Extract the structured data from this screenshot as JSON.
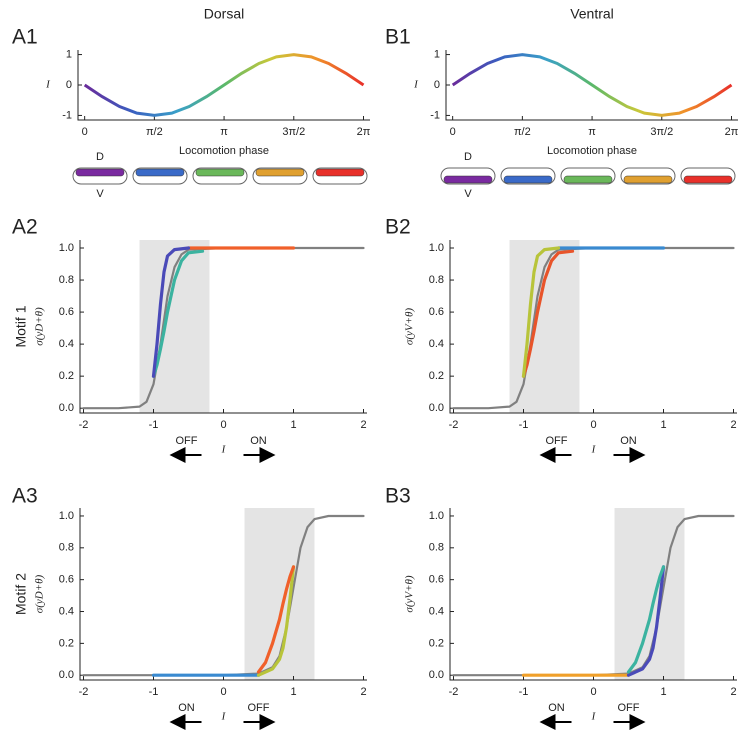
{
  "chart_data": [
    {
      "type": "line",
      "panel_label": "A1",
      "title": "Dorsal",
      "xlabel": "Locomotion phase",
      "ylabel": "I",
      "x": [
        0,
        0.3927,
        0.7854,
        1.1781,
        1.5708,
        1.9635,
        2.3562,
        2.7489,
        3.1416,
        3.5343,
        3.927,
        4.3197,
        4.7124,
        5.1051,
        5.4978,
        5.8905,
        6.2832
      ],
      "values": [
        0,
        -0.3827,
        -0.7071,
        -0.9239,
        -1,
        -0.9239,
        -0.7071,
        -0.3827,
        0,
        0.3827,
        0.7071,
        0.9239,
        1,
        0.9239,
        0.7071,
        0.3827,
        0
      ],
      "colormap": [
        "#6a2a9a",
        "#3a5ec0",
        "#3aa0c8",
        "#5ab86a",
        "#c8c83a",
        "#f0902a",
        "#e8302a"
      ],
      "xlim": [
        -0.15,
        6.43
      ],
      "ylim": [
        -1.15,
        1.15
      ],
      "xticks": [
        0,
        {
          "value": 1.5708,
          "label": "π/2"
        },
        {
          "value": 3.1416,
          "label": "π"
        },
        {
          "value": 4.7124,
          "label": "3π/2"
        },
        {
          "value": 6.2832,
          "label": "2π"
        }
      ],
      "yticks": [
        -1,
        0,
        1
      ],
      "body_labels": [
        "D",
        "V"
      ]
    },
    {
      "type": "line",
      "panel_label": "B1",
      "title": "Ventral",
      "xlabel": "Locomotion phase",
      "ylabel": "I",
      "x": [
        0,
        0.3927,
        0.7854,
        1.1781,
        1.5708,
        1.9635,
        2.3562,
        2.7489,
        3.1416,
        3.5343,
        3.927,
        4.3197,
        4.7124,
        5.1051,
        5.4978,
        5.8905,
        6.2832
      ],
      "values": [
        0,
        0.3827,
        0.7071,
        0.9239,
        1,
        0.9239,
        0.7071,
        0.3827,
        0,
        -0.3827,
        -0.7071,
        -0.9239,
        -1,
        -0.9239,
        -0.7071,
        -0.3827,
        0
      ],
      "colormap": [
        "#6a2a9a",
        "#3a5ec0",
        "#3aa0c8",
        "#5ab86a",
        "#c8c83a",
        "#f0902a",
        "#e8302a"
      ],
      "xlim": [
        -0.15,
        6.43
      ],
      "ylim": [
        -1.15,
        1.15
      ],
      "xticks": [
        0,
        {
          "value": 1.5708,
          "label": "π/2"
        },
        {
          "value": 3.1416,
          "label": "π"
        },
        {
          "value": 4.7124,
          "label": "3π/2"
        },
        {
          "value": 6.2832,
          "label": "2π"
        }
      ],
      "yticks": [
        -1,
        0,
        1
      ],
      "body_labels": [
        "D",
        "V"
      ]
    },
    {
      "type": "line",
      "panel_label": "A2",
      "row_label": "Motif 1",
      "ylabel": "σ(yD+θ)",
      "xlabel": "I",
      "direction_labels": [
        "OFF",
        "ON"
      ],
      "xlim": [
        -2.05,
        2.05
      ],
      "ylim": [
        -0.03,
        1.05
      ],
      "xticks": [
        -2,
        -1,
        0,
        1,
        2
      ],
      "yticks": [
        {
          "value": 0,
          "label": "0.0"
        },
        0.2,
        0.4,
        0.6,
        0.8,
        {
          "value": 1,
          "label": "1.0"
        }
      ],
      "shade": [
        -1.2,
        -0.2
      ],
      "series": [
        {
          "color": "#808080",
          "x": [
            -2,
            -1.5,
            -1.2,
            -1.1,
            -1,
            -0.9,
            -0.8,
            -0.7,
            -0.6,
            -0.5,
            0,
            1,
            2
          ],
          "values": [
            0,
            0,
            0.01,
            0.04,
            0.15,
            0.4,
            0.7,
            0.88,
            0.96,
            0.99,
            1,
            1,
            1
          ]
        },
        {
          "color": "#3bb3a0",
          "x": [
            -1,
            -0.95,
            -0.9,
            -0.85,
            -0.8,
            -0.7,
            -0.6,
            -0.5,
            -0.3
          ],
          "values": [
            0.2,
            0.27,
            0.37,
            0.48,
            0.6,
            0.8,
            0.92,
            0.97,
            0.98
          ]
        },
        {
          "color": "#f0602a",
          "x": [
            -0.5,
            0,
            0.5,
            1
          ],
          "values": [
            1,
            1,
            1,
            1
          ]
        },
        {
          "color": "#4a4ab8",
          "x": [
            -0.5,
            -0.7,
            -0.8,
            -0.85,
            -0.9,
            -0.95,
            -1
          ],
          "values": [
            1,
            0.99,
            0.95,
            0.85,
            0.65,
            0.4,
            0.2
          ]
        }
      ]
    },
    {
      "type": "line",
      "panel_label": "B2",
      "ylabel": "σ(yV+θ)",
      "xlabel": "I",
      "direction_labels": [
        "OFF",
        "ON"
      ],
      "xlim": [
        -2.05,
        2.05
      ],
      "ylim": [
        -0.03,
        1.05
      ],
      "xticks": [
        -2,
        -1,
        0,
        1,
        2
      ],
      "yticks": [
        {
          "value": 0,
          "label": "0.0"
        },
        0.2,
        0.4,
        0.6,
        0.8,
        {
          "value": 1,
          "label": "1.0"
        }
      ],
      "shade": [
        -1.2,
        -0.2
      ],
      "series": [
        {
          "color": "#808080",
          "x": [
            -2,
            -1.5,
            -1.2,
            -1.1,
            -1,
            -0.9,
            -0.8,
            -0.7,
            -0.6,
            -0.5,
            0,
            1,
            2
          ],
          "values": [
            0,
            0,
            0.01,
            0.04,
            0.15,
            0.4,
            0.7,
            0.88,
            0.96,
            0.99,
            1,
            1,
            1
          ]
        },
        {
          "color": "#e8542a",
          "x": [
            -1,
            -0.95,
            -0.9,
            -0.85,
            -0.8,
            -0.7,
            -0.6,
            -0.5,
            -0.3
          ],
          "values": [
            0.2,
            0.27,
            0.37,
            0.48,
            0.6,
            0.8,
            0.92,
            0.97,
            0.98
          ]
        },
        {
          "color": "#3a8ad0",
          "x": [
            -0.5,
            0,
            0.5,
            1
          ],
          "values": [
            1,
            1,
            1,
            1
          ]
        },
        {
          "color": "#b8c43a",
          "x": [
            -0.5,
            -0.7,
            -0.8,
            -0.85,
            -0.9,
            -0.95,
            -1
          ],
          "values": [
            1,
            0.99,
            0.95,
            0.85,
            0.65,
            0.4,
            0.2
          ]
        }
      ]
    },
    {
      "type": "line",
      "panel_label": "A3",
      "row_label": "Motif 2",
      "ylabel": "σ(yD+θ)",
      "xlabel": "I",
      "direction_labels": [
        "ON",
        "OFF"
      ],
      "xlim": [
        -2.05,
        2.05
      ],
      "ylim": [
        -0.03,
        1.05
      ],
      "xticks": [
        -2,
        -1,
        0,
        1,
        2
      ],
      "yticks": [
        {
          "value": 0,
          "label": "0.0"
        },
        0.2,
        0.4,
        0.6,
        0.8,
        {
          "value": 1,
          "label": "1.0"
        }
      ],
      "shade": [
        0.3,
        1.3
      ],
      "series": [
        {
          "color": "#808080",
          "x": [
            -2,
            -1,
            0,
            0.5,
            0.7,
            0.8,
            0.9,
            1,
            1.1,
            1.2,
            1.3,
            1.5,
            2
          ],
          "values": [
            0,
            0,
            0,
            0.01,
            0.05,
            0.12,
            0.3,
            0.55,
            0.8,
            0.93,
            0.98,
            1,
            1
          ]
        },
        {
          "color": "#3a8ad0",
          "x": [
            -1,
            0,
            0.5
          ],
          "values": [
            0,
            0,
            0
          ]
        },
        {
          "color": "#b8c43a",
          "x": [
            0.5,
            0.7,
            0.8,
            0.85,
            0.9,
            0.95,
            1
          ],
          "values": [
            0,
            0.04,
            0.1,
            0.17,
            0.3,
            0.48,
            0.68
          ]
        },
        {
          "color": "#f0602a",
          "x": [
            1,
            0.95,
            0.9,
            0.85,
            0.8,
            0.7,
            0.6,
            0.5
          ],
          "values": [
            0.68,
            0.62,
            0.54,
            0.45,
            0.35,
            0.2,
            0.08,
            0.02
          ]
        }
      ]
    },
    {
      "type": "line",
      "panel_label": "B3",
      "ylabel": "σ(yV+θ)",
      "xlabel": "I",
      "direction_labels": [
        "ON",
        "OFF"
      ],
      "xlim": [
        -2.05,
        2.05
      ],
      "ylim": [
        -0.03,
        1.05
      ],
      "xticks": [
        -2,
        -1,
        0,
        1,
        2
      ],
      "yticks": [
        {
          "value": 0,
          "label": "0.0"
        },
        0.2,
        0.4,
        0.6,
        0.8,
        {
          "value": 1,
          "label": "1.0"
        }
      ],
      "shade": [
        0.3,
        1.3
      ],
      "series": [
        {
          "color": "#808080",
          "x": [
            -2,
            -1,
            0,
            0.5,
            0.7,
            0.8,
            0.9,
            1,
            1.1,
            1.2,
            1.3,
            1.5,
            2
          ],
          "values": [
            0,
            0,
            0,
            0.01,
            0.05,
            0.12,
            0.3,
            0.55,
            0.8,
            0.93,
            0.98,
            1,
            1
          ]
        },
        {
          "color": "#f0a02a",
          "x": [
            -1,
            0,
            0.5
          ],
          "values": [
            0,
            0,
            0
          ]
        },
        {
          "color": "#4a4ab8",
          "x": [
            0.5,
            0.7,
            0.8,
            0.85,
            0.9,
            0.95,
            1
          ],
          "values": [
            0,
            0.04,
            0.1,
            0.17,
            0.3,
            0.48,
            0.68
          ]
        },
        {
          "color": "#3bb3a0",
          "x": [
            1,
            0.95,
            0.9,
            0.85,
            0.8,
            0.7,
            0.6,
            0.5
          ],
          "values": [
            0.68,
            0.62,
            0.54,
            0.45,
            0.35,
            0.2,
            0.08,
            0.02
          ]
        }
      ]
    }
  ]
}
